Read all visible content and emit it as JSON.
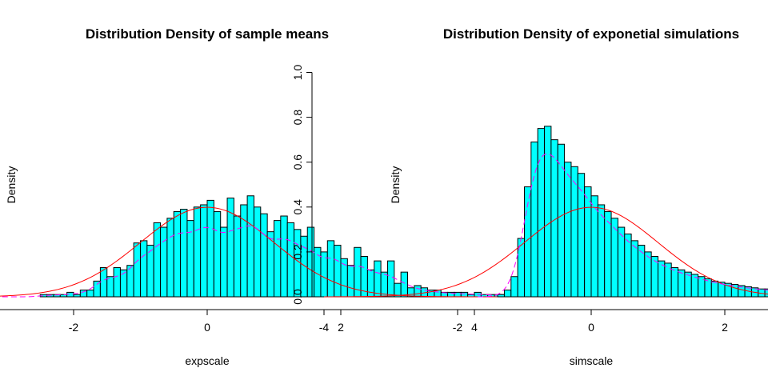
{
  "chart_data": [
    {
      "type": "histogram",
      "title": "Distribution Density of sample means",
      "xlabel": "expscale",
      "ylabel": "Density",
      "xlim": [
        -4,
        4.4
      ],
      "ylim": [
        0,
        1.0
      ],
      "xticks": [
        -4,
        -2,
        0,
        2,
        4
      ],
      "yticks": [
        0.0,
        0.2,
        0.4,
        0.6,
        0.8,
        1.0
      ],
      "bin_start": -2.5,
      "bin_width": 0.1,
      "density": [
        0.01,
        0.01,
        0.01,
        0.01,
        0.02,
        0.01,
        0.03,
        0.03,
        0.07,
        0.13,
        0.09,
        0.13,
        0.12,
        0.14,
        0.24,
        0.25,
        0.23,
        0.33,
        0.31,
        0.35,
        0.38,
        0.39,
        0.34,
        0.4,
        0.41,
        0.43,
        0.38,
        0.31,
        0.44,
        0.36,
        0.41,
        0.45,
        0.4,
        0.37,
        0.29,
        0.34,
        0.36,
        0.33,
        0.3,
        0.27,
        0.31,
        0.22,
        0.2,
        0.25,
        0.23,
        0.17,
        0.14,
        0.22,
        0.18,
        0.12,
        0.16,
        0.11,
        0.16,
        0.06,
        0.11,
        0.04,
        0.05,
        0.04,
        0.03,
        0.03,
        0.02,
        0.02,
        0.02,
        0.02,
        0.01,
        0.02,
        0.01,
        0.01,
        0.01,
        0.01,
        0.01,
        0.01,
        0.01,
        0.01,
        0.01,
        0.03,
        0.01,
        0.02,
        0.01,
        0.01,
        0.01,
        0.01,
        0.03,
        0.01
      ],
      "curves": [
        {
          "kind": "normal",
          "mean": 0,
          "sd": 1,
          "color": "#ff0000",
          "style": "solid",
          "x_range": [
            -4,
            4.4
          ]
        },
        {
          "kind": "kde",
          "color": "#ff00ff",
          "style": "dashed",
          "x_range": [
            -3.2,
            4.4
          ]
        }
      ]
    },
    {
      "type": "histogram",
      "title": "Distribution Density of exponetial simulations",
      "xlabel": "simscale",
      "ylabel": "Density",
      "xlim": [
        -4,
        4.4
      ],
      "ylim": [
        0,
        1.0
      ],
      "xticks": [
        -4,
        -2,
        0,
        2,
        4
      ],
      "yticks": [
        0.0,
        0.2,
        0.4,
        0.6,
        0.8,
        1.0
      ],
      "bin_start": -1.6,
      "bin_width": 0.1,
      "density": [
        0.0,
        0.0,
        0.01,
        0.03,
        0.09,
        0.26,
        0.49,
        0.69,
        0.75,
        0.76,
        0.7,
        0.68,
        0.6,
        0.58,
        0.55,
        0.49,
        0.45,
        0.41,
        0.38,
        0.35,
        0.31,
        0.28,
        0.25,
        0.23,
        0.2,
        0.18,
        0.16,
        0.15,
        0.13,
        0.12,
        0.11,
        0.1,
        0.09,
        0.08,
        0.07,
        0.065,
        0.06,
        0.055,
        0.05,
        0.045,
        0.04,
        0.035,
        0.035,
        0.03,
        0.03,
        0.025,
        0.02,
        0.02,
        0.02,
        0.015,
        0.015,
        0.01,
        0.01,
        0.01,
        0.01,
        0.01,
        0.01,
        0.005,
        0.005
      ],
      "curves": [
        {
          "kind": "normal",
          "mean": 0,
          "sd": 1,
          "color": "#ff0000",
          "style": "solid",
          "x_range": [
            -4,
            4.4
          ]
        },
        {
          "kind": "kde",
          "color": "#ff00ff",
          "style": "dashed",
          "x_range": [
            -1.7,
            4.4
          ]
        }
      ]
    }
  ]
}
